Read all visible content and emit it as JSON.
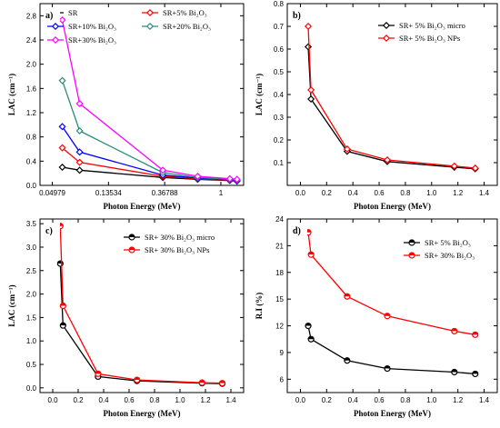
{
  "chart_data": [
    {
      "type": "line",
      "panel_label": "a)",
      "xlabel": "Photon Energy (MeV)",
      "ylabel": "LAC (cm⁻¹)",
      "xscale": "log",
      "xlim": [
        0.04,
        1.5
      ],
      "ylim": [
        0.0,
        3.0
      ],
      "xticks": [
        0.049787,
        0.135335,
        0.367879,
        1
      ],
      "xticklabels": [
        "0.04979",
        "0.13534",
        "0.36788",
        "1"
      ],
      "yticks": [
        0.0,
        0.4,
        0.8,
        1.2,
        1.6,
        2.0,
        2.4,
        2.8
      ],
      "yticklabels": [
        "0.0",
        "0.4",
        "0.8",
        "1.2",
        "1.6",
        "2.0",
        "2.4",
        "2.8"
      ],
      "legend_placement": "top",
      "series": [
        {
          "name": "SR",
          "color": "#000000",
          "marker": "diamond",
          "x": [
            0.0595,
            0.081,
            0.356,
            0.662,
            1.173,
            1.332
          ],
          "y": [
            0.3,
            0.25,
            0.13,
            0.1,
            0.08,
            0.07
          ]
        },
        {
          "name": "SR+5% Bi₂O₃",
          "color": "#ff0000",
          "marker": "diamond",
          "x": [
            0.0595,
            0.081,
            0.356,
            0.662,
            1.173,
            1.332
          ],
          "y": [
            0.62,
            0.38,
            0.15,
            0.11,
            0.085,
            0.075
          ]
        },
        {
          "name": "SR+10% Bi₂O₃",
          "color": "#0000ff",
          "marker": "diamond",
          "x": [
            0.0595,
            0.081,
            0.356,
            0.662,
            1.173,
            1.332
          ],
          "y": [
            0.97,
            0.55,
            0.17,
            0.12,
            0.09,
            0.08
          ]
        },
        {
          "name": "SR+20% Bi₂O₃",
          "color": "#2a8a7a",
          "marker": "diamond",
          "x": [
            0.0595,
            0.081,
            0.356,
            0.662,
            1.173,
            1.332
          ],
          "y": [
            1.73,
            0.9,
            0.21,
            0.13,
            0.1,
            0.09
          ]
        },
        {
          "name": "SR+30% Bi₂O₃",
          "color": "#ff00ff",
          "marker": "diamond",
          "x": [
            0.0595,
            0.081,
            0.356,
            0.662,
            1.173,
            1.332
          ],
          "y": [
            2.73,
            1.35,
            0.25,
            0.15,
            0.11,
            0.1
          ]
        }
      ]
    },
    {
      "type": "line",
      "panel_label": "b)",
      "xlabel": "Photon Energy (MeV)",
      "ylabel": "LAC (cm⁻¹)",
      "xlim": [
        -0.1,
        1.5
      ],
      "ylim": [
        0.0,
        0.8
      ],
      "xticks": [
        0.0,
        0.2,
        0.4,
        0.6,
        0.8,
        1.0,
        1.2,
        1.4
      ],
      "xticklabels": [
        "0.0",
        "0.2",
        "0.4",
        "0.6",
        "0.8",
        "1.0",
        "1.2",
        "1.4"
      ],
      "yticks": [
        0.1,
        0.2,
        0.3,
        0.4,
        0.5,
        0.6,
        0.7,
        0.8
      ],
      "yticklabels": [
        "0.1",
        "0.2",
        "0.3",
        "0.4",
        "0.5",
        "0.6",
        "0.7",
        "0.8"
      ],
      "legend_placement": "top-right",
      "series": [
        {
          "name": "SR+ 5% Bi₂O₃ micro",
          "color": "#000000",
          "marker": "diamond",
          "x": [
            0.0595,
            0.081,
            0.356,
            0.662,
            1.173,
            1.332
          ],
          "y": [
            0.61,
            0.38,
            0.15,
            0.105,
            0.08,
            0.073
          ]
        },
        {
          "name": "SR+ 5% Bi₂O₃ NPs",
          "color": "#ff0000",
          "marker": "diamond",
          "x": [
            0.0595,
            0.081,
            0.356,
            0.662,
            1.173,
            1.332
          ],
          "y": [
            0.7,
            0.42,
            0.16,
            0.112,
            0.085,
            0.076
          ]
        }
      ]
    },
    {
      "type": "line",
      "panel_label": "c)",
      "xlabel": "Photon Energy (MeV)",
      "ylabel": "LAC (cm⁻¹)",
      "xlim": [
        -0.1,
        1.5
      ],
      "ylim": [
        -0.1,
        3.6
      ],
      "xticks": [
        0.0,
        0.2,
        0.4,
        0.6,
        0.8,
        1.0,
        1.2,
        1.4
      ],
      "xticklabels": [
        "0.0",
        "0.2",
        "0.4",
        "0.6",
        "0.8",
        "1.0",
        "1.2",
        "1.4"
      ],
      "yticks": [
        0.0,
        0.5,
        1.0,
        1.5,
        2.0,
        2.5,
        3.0,
        3.5
      ],
      "yticklabels": [
        "0.0",
        "0.5",
        "1.0",
        "1.5",
        "2.0",
        "2.5",
        "3.0",
        "3.5"
      ],
      "legend_placement": "top-right",
      "series": [
        {
          "name": "SR+ 30% Bi₂O₃ micro",
          "color": "#000000",
          "marker": "circle",
          "x": [
            0.0595,
            0.081,
            0.356,
            0.662,
            1.173,
            1.332
          ],
          "y": [
            2.65,
            1.33,
            0.24,
            0.15,
            0.1,
            0.09
          ]
        },
        {
          "name": "SR+ 30% Bi₂O₃ NPs",
          "color": "#ff0000",
          "marker": "circle",
          "x": [
            0.0595,
            0.081,
            0.356,
            0.662,
            1.173,
            1.332
          ],
          "y": [
            3.45,
            1.75,
            0.3,
            0.17,
            0.11,
            0.1
          ]
        }
      ]
    },
    {
      "type": "line",
      "panel_label": "d)",
      "xlabel": "Photon Energy (MeV)",
      "ylabel": "R.I (%)",
      "xlim": [
        -0.1,
        1.5
      ],
      "ylim": [
        4.5,
        24.0
      ],
      "xticks": [
        0.0,
        0.2,
        0.4,
        0.6,
        0.8,
        1.0,
        1.2,
        1.4
      ],
      "xticklabels": [
        "0.0",
        "0.2",
        "0.4",
        "0.6",
        "0.8",
        "1.0",
        "1.2",
        "1.4"
      ],
      "yticks": [
        6,
        9,
        12,
        15,
        18,
        21,
        24
      ],
      "yticklabels": [
        "6",
        "9",
        "12",
        "15",
        "18",
        "21",
        "24"
      ],
      "legend_placement": "top-right",
      "series": [
        {
          "name": "SR+ 5% Bi₂O₃",
          "color": "#000000",
          "marker": "circle",
          "x": [
            0.0595,
            0.081,
            0.356,
            0.662,
            1.173,
            1.332
          ],
          "y": [
            12.0,
            10.5,
            8.1,
            7.2,
            6.8,
            6.6
          ]
        },
        {
          "name": "SR+ 30% Bi₂O₃",
          "color": "#ff0000",
          "marker": "circle",
          "x": [
            0.0595,
            0.081,
            0.356,
            0.662,
            1.173,
            1.332
          ],
          "y": [
            22.5,
            20.0,
            15.3,
            13.1,
            11.4,
            11.0
          ]
        }
      ]
    }
  ]
}
